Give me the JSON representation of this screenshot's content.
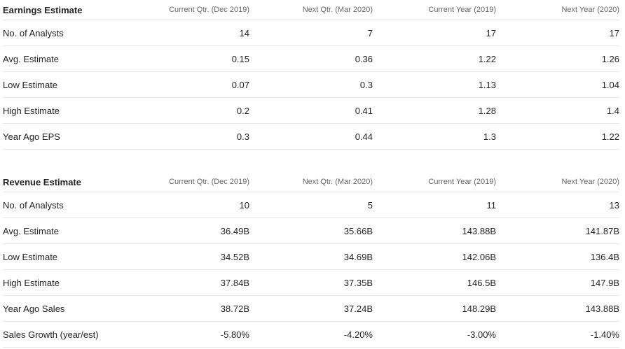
{
  "earnings": {
    "title": "Earnings Estimate",
    "columns": [
      "Current Qtr. (Dec 2019)",
      "Next Qtr. (Mar 2020)",
      "Current Year (2019)",
      "Next Year (2020)"
    ],
    "rows": [
      {
        "label": "No. of Analysts",
        "values": [
          "14",
          "7",
          "17",
          "17"
        ]
      },
      {
        "label": "Avg. Estimate",
        "values": [
          "0.15",
          "0.36",
          "1.22",
          "1.26"
        ]
      },
      {
        "label": "Low Estimate",
        "values": [
          "0.07",
          "0.3",
          "1.13",
          "1.04"
        ]
      },
      {
        "label": "High Estimate",
        "values": [
          "0.2",
          "0.41",
          "1.28",
          "1.4"
        ]
      },
      {
        "label": "Year Ago EPS",
        "values": [
          "0.3",
          "0.44",
          "1.3",
          "1.22"
        ]
      }
    ]
  },
  "revenue": {
    "title": "Revenue Estimate",
    "columns": [
      "Current Qtr. (Dec 2019)",
      "Next Qtr. (Mar 2020)",
      "Current Year (2019)",
      "Next Year (2020)"
    ],
    "rows": [
      {
        "label": "No. of Analysts",
        "values": [
          "10",
          "5",
          "11",
          "13"
        ]
      },
      {
        "label": "Avg. Estimate",
        "values": [
          "36.49B",
          "35.66B",
          "143.88B",
          "141.87B"
        ]
      },
      {
        "label": "Low Estimate",
        "values": [
          "34.52B",
          "34.69B",
          "142.06B",
          "136.4B"
        ]
      },
      {
        "label": "High Estimate",
        "values": [
          "37.84B",
          "37.35B",
          "146.5B",
          "147.9B"
        ]
      },
      {
        "label": "Year Ago Sales",
        "values": [
          "38.72B",
          "37.24B",
          "148.29B",
          "143.88B"
        ]
      },
      {
        "label": "Sales Growth (year/est)",
        "values": [
          "-5.80%",
          "-4.20%",
          "-3.00%",
          "-1.40%"
        ]
      }
    ]
  }
}
